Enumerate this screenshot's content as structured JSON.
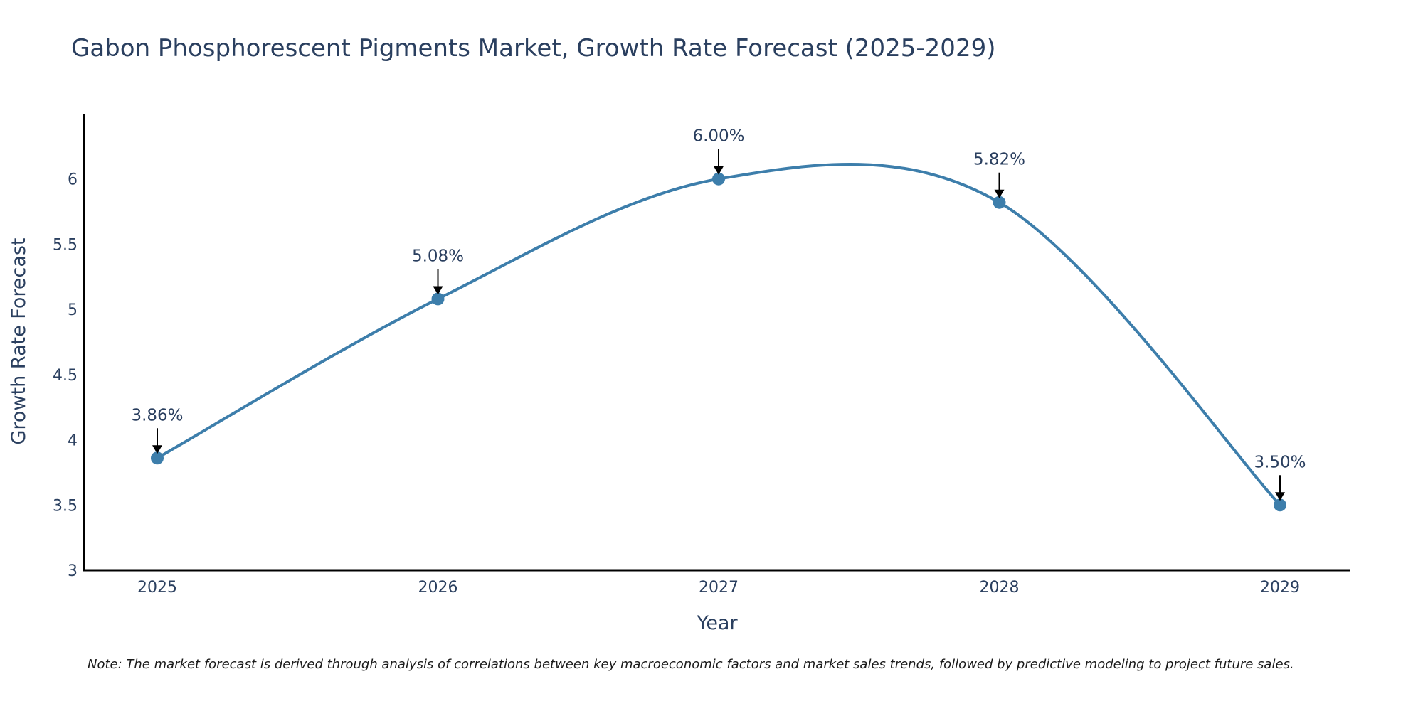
{
  "chart_data": {
    "type": "line",
    "title": "Gabon Phosphorescent Pigments Market, Growth Rate Forecast (2025-2029)",
    "xlabel": "Year",
    "ylabel": "Growth Rate Forecast",
    "categories": [
      "2025",
      "2026",
      "2027",
      "2028",
      "2029"
    ],
    "series": [
      {
        "name": "Growth Rate Forecast",
        "values": [
          3.86,
          5.08,
          6.0,
          5.82,
          3.5
        ]
      }
    ],
    "data_labels": [
      "3.86%",
      "5.08%",
      "6.00%",
      "5.82%",
      "3.50%"
    ],
    "ylim": [
      3,
      6.5
    ],
    "y_ticks": [
      3,
      3.5,
      4,
      4.5,
      5,
      5.5,
      6
    ],
    "y_tick_labels": [
      "3",
      "3.5",
      "4",
      "4.5",
      "5",
      "5.5",
      "6"
    ],
    "line_shape": "spline",
    "grid": false,
    "colors": {
      "line": "#3d7eab",
      "marker": "#3d7eab",
      "arrow": "#000000",
      "axis": "#000000",
      "text": "#2a3f5f"
    }
  },
  "note": "Note: The market forecast is derived through analysis of correlations between key macroeconomic factors and market sales trends, followed by predictive modeling to project future sales."
}
